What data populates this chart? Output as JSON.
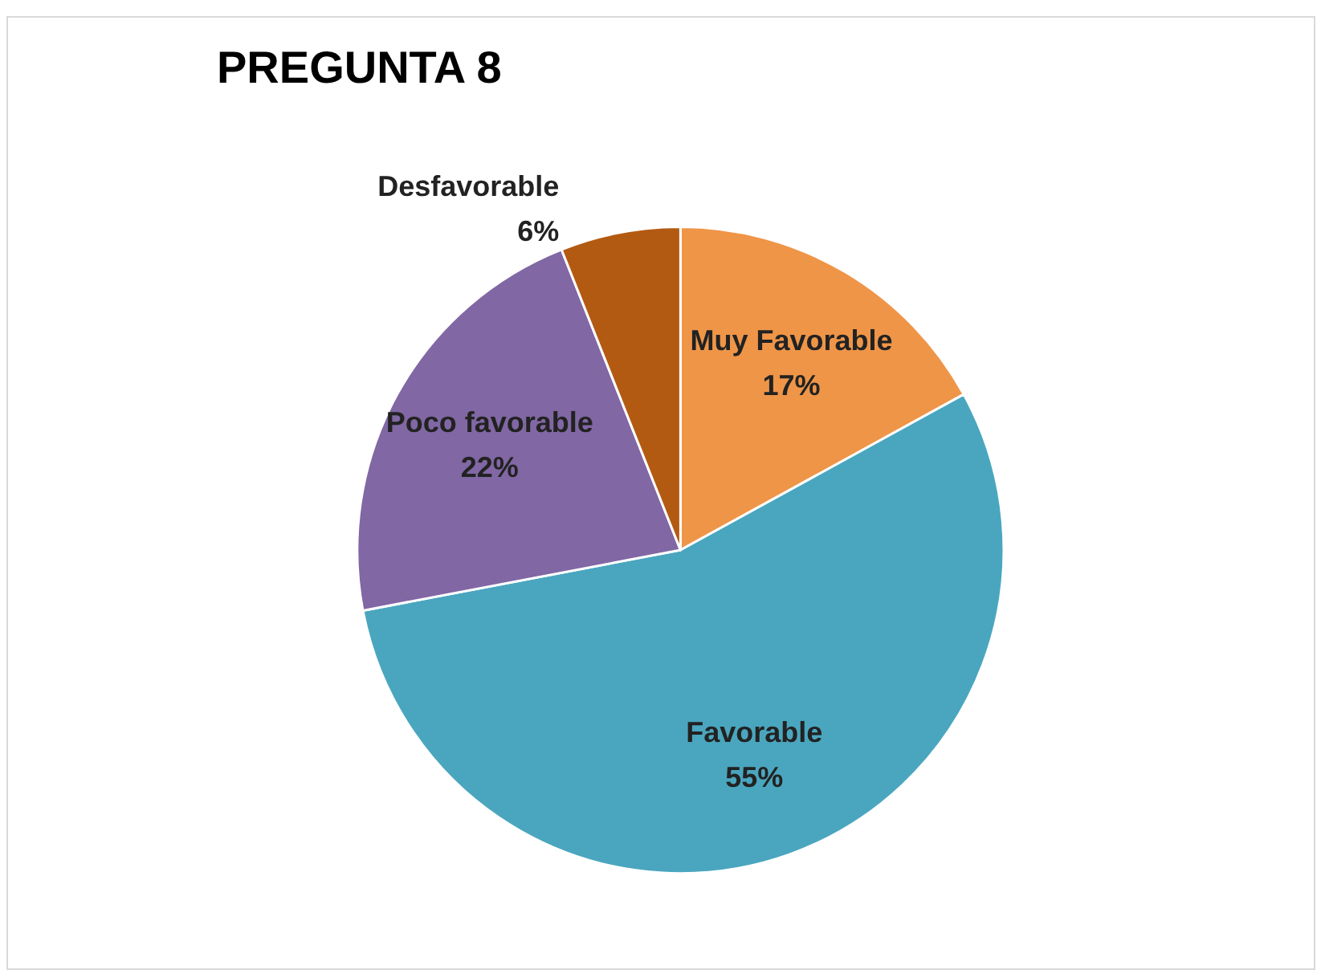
{
  "chart_data": {
    "type": "pie",
    "title": "PREGUNTA 8",
    "categories": [
      "Muy Favorable",
      "Favorable",
      "Poco favorable",
      "Desfavorable"
    ],
    "values": [
      17,
      55,
      22,
      6
    ],
    "colors": [
      "#ef9548",
      "#4aa6bf",
      "#8167a4",
      "#b35a12"
    ],
    "value_labels": [
      "17%",
      "55%",
      "22%",
      "6%"
    ]
  }
}
